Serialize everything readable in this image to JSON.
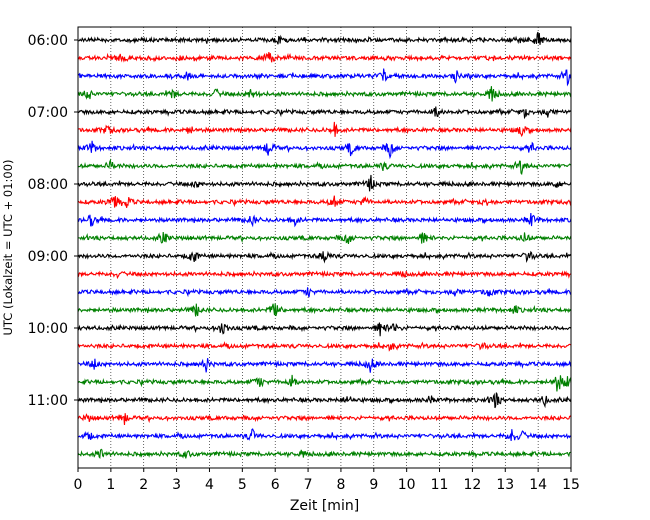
{
  "chart_data": {
    "type": "line",
    "title": "",
    "xlabel": "Zeit  [min]",
    "ylabel": "UTC (Lokalzeit = UTC + 01:00)",
    "xlim": [
      0,
      15
    ],
    "x_ticks": [
      "0",
      "1",
      "2",
      "3",
      "4",
      "5",
      "6",
      "7",
      "8",
      "9",
      "10",
      "11",
      "12",
      "13",
      "14",
      "15"
    ],
    "y_ticks": [
      {
        "label": "06:00",
        "trace": 0
      },
      {
        "label": "07:00",
        "trace": 4
      },
      {
        "label": "08:00",
        "trace": 8
      },
      {
        "label": "09:00",
        "trace": 12
      },
      {
        "label": "10:00",
        "trace": 16
      },
      {
        "label": "11:00",
        "trace": 20
      }
    ],
    "grid": "vertical dotted at each minute",
    "trace_interval_min": 15,
    "trace_colors": [
      "#000000",
      "#ff0000",
      "#0000ff",
      "#008000"
    ],
    "series": [
      {
        "start": "06:00",
        "color": "#000000",
        "events": [
          [
            6.1,
            0.9
          ],
          [
            13.4,
            0.8
          ],
          [
            14.0,
            2.8
          ]
        ]
      },
      {
        "start": "06:15",
        "color": "#ff0000",
        "events": [
          [
            5.8,
            2.0
          ],
          [
            1.3,
            0.8
          ],
          [
            3.1,
            0.6
          ]
        ]
      },
      {
        "start": "06:30",
        "color": "#0000ff",
        "events": [
          [
            9.3,
            1.6
          ],
          [
            11.5,
            1.4
          ],
          [
            14.9,
            2.0
          ],
          [
            3.3,
            0.9
          ]
        ]
      },
      {
        "start": "06:45",
        "color": "#008000",
        "events": [
          [
            0.3,
            1.6
          ],
          [
            2.9,
            1.2
          ],
          [
            4.2,
            1.0
          ],
          [
            5.3,
            1.6
          ],
          [
            12.6,
            2.0
          ]
        ]
      },
      {
        "start": "07:00",
        "color": "#000000",
        "events": [
          [
            10.9,
            1.4
          ],
          [
            13.6,
            1.2
          ],
          [
            14.3,
            1.4
          ]
        ]
      },
      {
        "start": "07:15",
        "color": "#ff0000",
        "events": [
          [
            0.9,
            1.2
          ],
          [
            3.4,
            1.0
          ],
          [
            7.8,
            1.6
          ],
          [
            13.5,
            1.4
          ]
        ]
      },
      {
        "start": "07:30",
        "color": "#0000ff",
        "events": [
          [
            0.4,
            1.8
          ],
          [
            5.8,
            2.2
          ],
          [
            8.3,
            1.6
          ],
          [
            9.5,
            2.4
          ],
          [
            13.8,
            1.0
          ]
        ]
      },
      {
        "start": "07:45",
        "color": "#008000",
        "events": [
          [
            1.0,
            1.2
          ],
          [
            9.3,
            1.0
          ],
          [
            13.5,
            1.8
          ]
        ]
      },
      {
        "start": "08:00",
        "color": "#000000",
        "events": [
          [
            3.6,
            0.8
          ],
          [
            8.9,
            2.0
          ],
          [
            14.6,
            1.0
          ]
        ]
      },
      {
        "start": "08:15",
        "color": "#ff0000",
        "events": [
          [
            1.1,
            2.2
          ],
          [
            1.5,
            1.4
          ],
          [
            7.8,
            2.0
          ],
          [
            8.7,
            1.2
          ],
          [
            12.4,
            1.0
          ]
        ]
      },
      {
        "start": "08:30",
        "color": "#0000ff",
        "events": [
          [
            0.4,
            1.8
          ],
          [
            5.3,
            1.4
          ],
          [
            6.6,
            1.2
          ],
          [
            13.8,
            1.6
          ]
        ]
      },
      {
        "start": "08:45",
        "color": "#008000",
        "events": [
          [
            2.6,
            1.6
          ],
          [
            8.2,
            1.6
          ],
          [
            10.5,
            1.6
          ],
          [
            13.6,
            1.4
          ]
        ]
      },
      {
        "start": "09:00",
        "color": "#000000",
        "events": [
          [
            3.5,
            2.0
          ],
          [
            7.5,
            1.8
          ],
          [
            13.7,
            1.6
          ]
        ]
      },
      {
        "start": "09:15",
        "color": "#ff0000",
        "events": [
          [
            1.2,
            0.6
          ],
          [
            9.9,
            0.6
          ]
        ]
      },
      {
        "start": "09:30",
        "color": "#0000ff",
        "events": [
          [
            7.0,
            1.2
          ],
          [
            11.5,
            1.4
          ],
          [
            12.5,
            1.4
          ]
        ]
      },
      {
        "start": "09:45",
        "color": "#008000",
        "events": [
          [
            3.6,
            1.6
          ],
          [
            6.0,
            2.6
          ],
          [
            13.3,
            1.0
          ]
        ]
      },
      {
        "start": "10:00",
        "color": "#000000",
        "events": [
          [
            4.4,
            2.2
          ],
          [
            9.2,
            1.8
          ],
          [
            9.6,
            1.4
          ]
        ]
      },
      {
        "start": "10:15",
        "color": "#ff0000",
        "events": [
          [
            9.5,
            1.0
          ],
          [
            12.3,
            0.8
          ]
        ]
      },
      {
        "start": "10:30",
        "color": "#0000ff",
        "events": [
          [
            0.5,
            1.2
          ],
          [
            3.9,
            1.6
          ],
          [
            8.9,
            1.8
          ]
        ]
      },
      {
        "start": "10:45",
        "color": "#008000",
        "events": [
          [
            5.5,
            1.8
          ],
          [
            6.5,
            1.6
          ],
          [
            14.6,
            2.8
          ],
          [
            14.9,
            1.6
          ]
        ]
      },
      {
        "start": "11:00",
        "color": "#000000",
        "events": [
          [
            8.2,
            1.2
          ],
          [
            10.7,
            1.0
          ],
          [
            12.7,
            2.2
          ],
          [
            14.2,
            1.2
          ]
        ]
      },
      {
        "start": "11:15",
        "color": "#ff0000",
        "events": [
          [
            1.4,
            1.6
          ],
          [
            0.3,
            0.8
          ]
        ]
      },
      {
        "start": "11:30",
        "color": "#0000ff",
        "events": [
          [
            0.3,
            1.4
          ],
          [
            5.3,
            1.6
          ],
          [
            13.2,
            1.8
          ],
          [
            13.5,
            1.2
          ]
        ]
      },
      {
        "start": "11:45",
        "color": "#008000",
        "events": [
          [
            0.7,
            1.4
          ],
          [
            3.3,
            1.0
          ],
          [
            6.8,
            0.8
          ]
        ]
      }
    ]
  }
}
